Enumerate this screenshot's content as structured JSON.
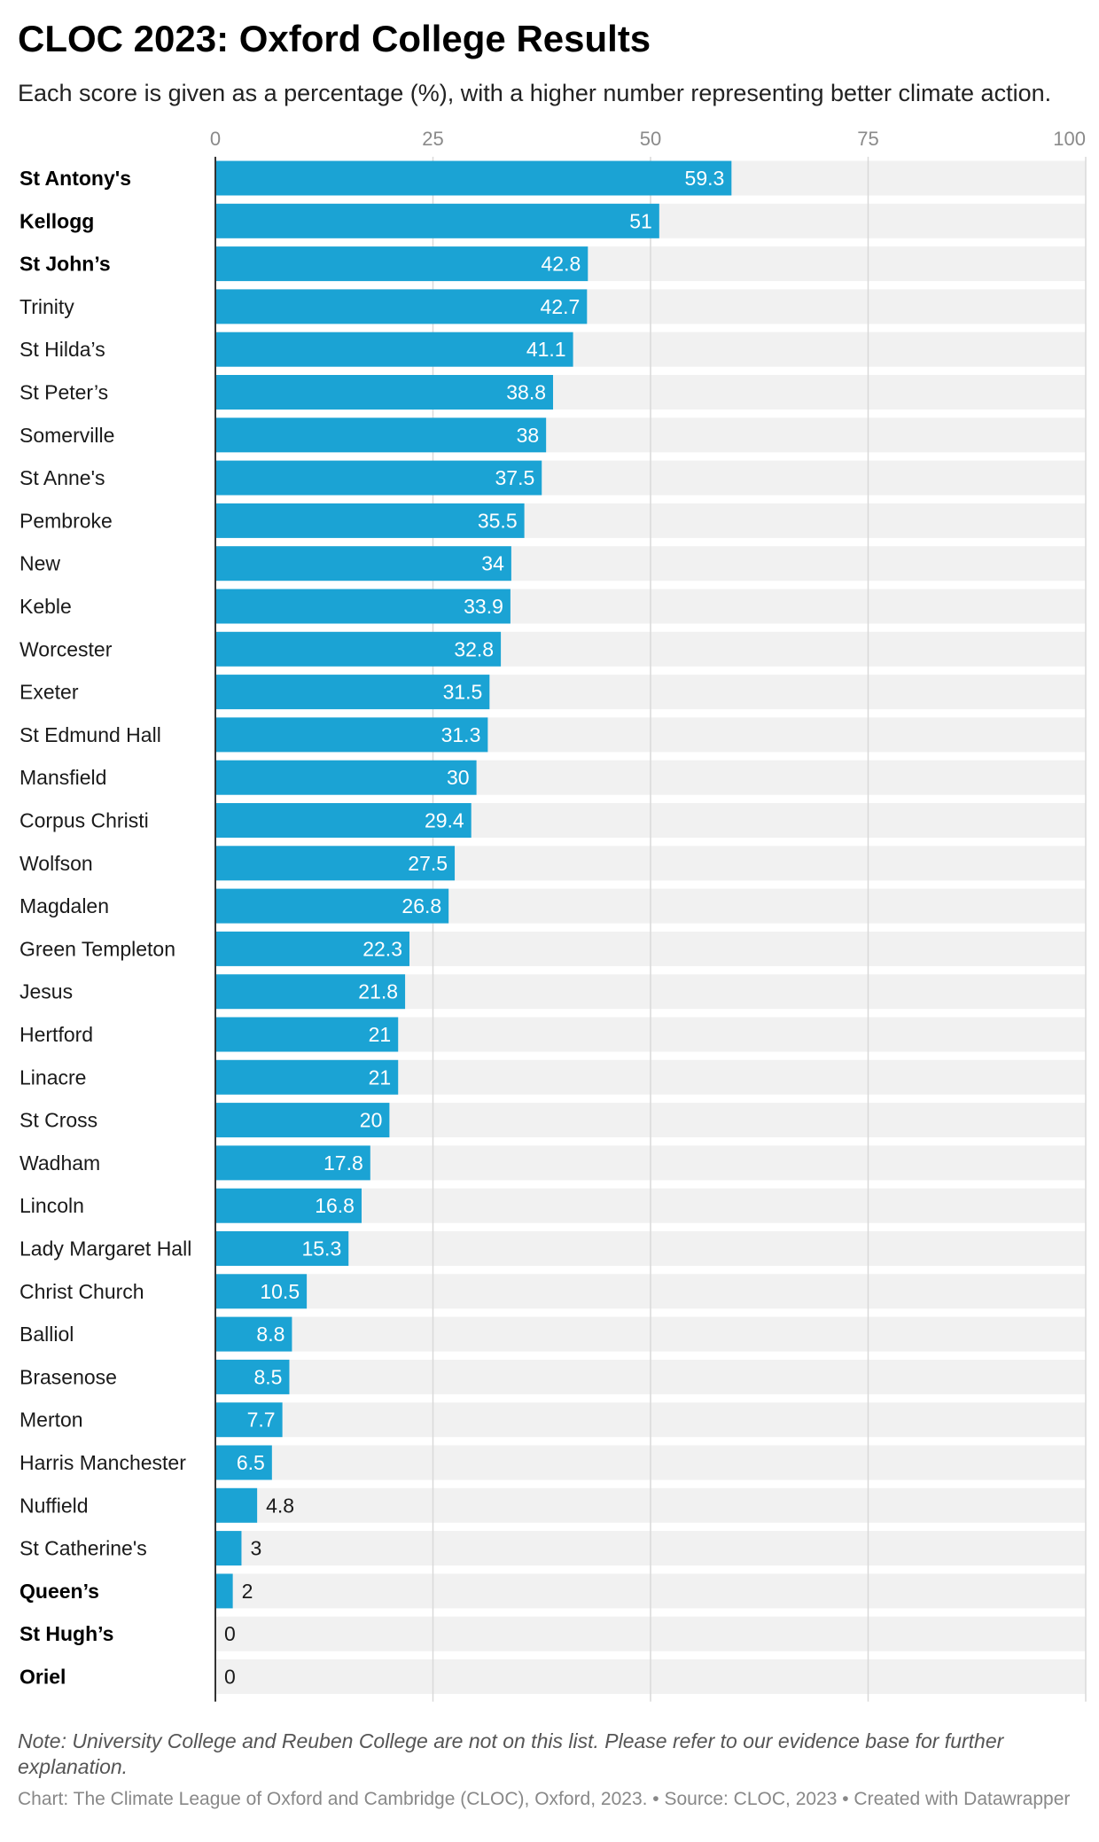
{
  "title": "CLOC 2023: Oxford College Results",
  "subtitle": "Each score is given as a percentage (%), with a higher number representing better climate action.",
  "note": "Note: University College and Reuben College are not on this list. Please refer to our evidence base for further explanation.",
  "credit": "Chart: The Climate League of Oxford and Cambridge (CLOC), Oxford, 2023. • Source: CLOC, 2023 • Created with Datawrapper",
  "colors": {
    "bar": "#1ba3d4",
    "track": "#f1f1f1",
    "grid": "#d9d9d9",
    "axis": "#333333"
  },
  "chart_data": {
    "type": "bar",
    "orientation": "horizontal",
    "xlim": [
      0,
      100
    ],
    "xticks": [
      "0",
      "25",
      "50",
      "75",
      "100"
    ],
    "grid": true,
    "bold_categories": [
      "St Antony's",
      "Kellogg",
      "St John’s",
      "Queen’s",
      "St Hugh’s",
      "Oriel"
    ],
    "categories": [
      "St Antony's",
      "Kellogg",
      "St John’s",
      "Trinity",
      "St Hilda’s",
      "St Peter’s",
      "Somerville",
      "St Anne's",
      "Pembroke",
      "New",
      "Keble",
      "Worcester",
      "Exeter",
      "St Edmund Hall",
      "Mansfield",
      "Corpus Christi",
      "Wolfson",
      "Magdalen",
      "Green Templeton",
      "Jesus",
      "Hertford",
      "Linacre",
      "St Cross",
      "Wadham",
      "Lincoln",
      "Lady Margaret Hall",
      "Christ Church",
      "Balliol",
      "Brasenose",
      "Merton",
      "Harris Manchester",
      "Nuffield",
      "St Catherine's",
      "Queen’s",
      "St Hugh’s",
      "Oriel"
    ],
    "values": [
      59.3,
      51,
      42.8,
      42.7,
      41.1,
      38.8,
      38,
      37.5,
      35.5,
      34,
      33.9,
      32.8,
      31.5,
      31.3,
      30,
      29.4,
      27.5,
      26.8,
      22.3,
      21.8,
      21,
      21,
      20,
      17.8,
      16.8,
      15.3,
      10.5,
      8.8,
      8.5,
      7.7,
      6.5,
      4.8,
      3,
      2,
      0,
      0
    ]
  }
}
